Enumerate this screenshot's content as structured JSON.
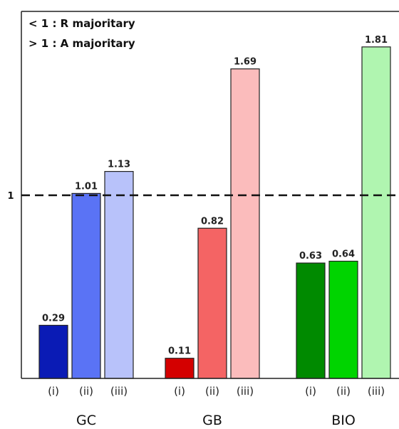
{
  "chart_data": {
    "type": "bar",
    "title": "",
    "xlabel": "",
    "ylabel": "",
    "ylim": [
      0,
      1.81
    ],
    "yticks": [
      "1"
    ],
    "reference_line": {
      "value": 1,
      "style": "dashed"
    },
    "annotations": [
      "< 1 : R majoritary",
      "> 1 : A majoritary"
    ],
    "grid": false,
    "groups": [
      {
        "label": "GC",
        "bars": [
          {
            "sub": "(i)",
            "value": 0.29,
            "label": "0.29",
            "color": "#0a1bb5"
          },
          {
            "sub": "(ii)",
            "value": 1.01,
            "label": "1.01",
            "color": "#5a73f5"
          },
          {
            "sub": "(iii)",
            "value": 1.13,
            "label": "1.13",
            "color": "#b8c2fa"
          }
        ]
      },
      {
        "label": "GB",
        "bars": [
          {
            "sub": "(i)",
            "value": 0.11,
            "label": "0.11",
            "color": "#d40000"
          },
          {
            "sub": "(ii)",
            "value": 0.82,
            "label": "0.82",
            "color": "#f46464"
          },
          {
            "sub": "(iii)",
            "value": 1.69,
            "label": "1.69",
            "color": "#fbbcbc"
          }
        ]
      },
      {
        "label": "BIO",
        "bars": [
          {
            "sub": "(i)",
            "value": 0.63,
            "label": "0.63",
            "color": "#008a00"
          },
          {
            "sub": "(ii)",
            "value": 0.64,
            "label": "0.64",
            "color": "#00d400"
          },
          {
            "sub": "(iii)",
            "value": 1.81,
            "label": "1.81",
            "color": "#b0f5b0"
          }
        ]
      }
    ]
  }
}
